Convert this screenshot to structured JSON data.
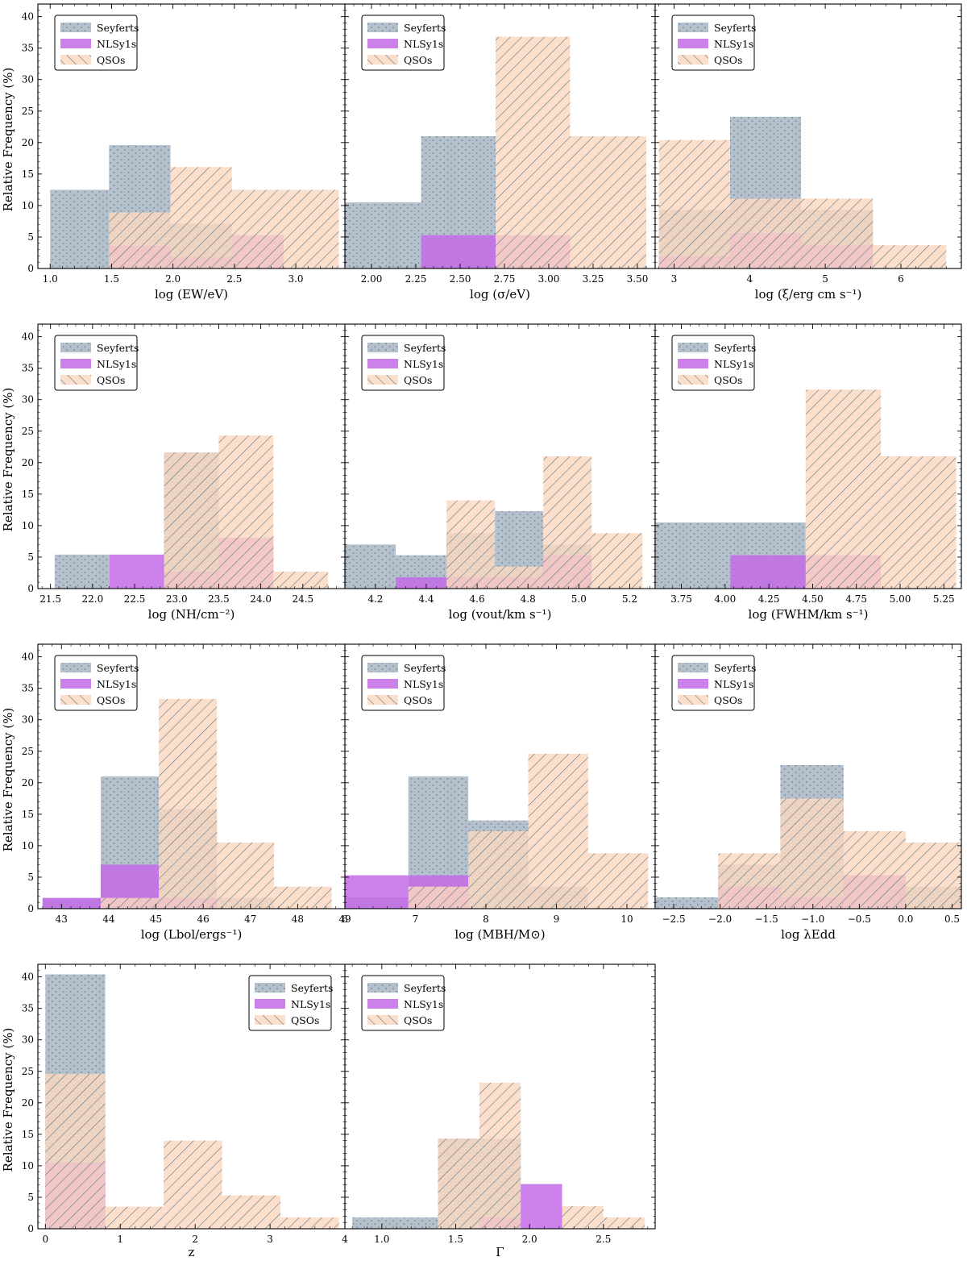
{
  "figure": {
    "ylabel": "Relative Frequency (%)"
  },
  "legend": {
    "labels": [
      "Seyferts",
      "NLSy1s",
      "QSOs"
    ]
  },
  "colors": {
    "seyfert_fill": "#b4c1cc",
    "seyfert_dot": "#6f8494",
    "nlsy_fill": "#c36be6",
    "qso_fill": "#fbd8be",
    "qso_hatch": "#4d6f88"
  },
  "chart_data": [
    {
      "type": "bar",
      "panel": "ew",
      "xlabel": "log (EW/eV)",
      "xlim": [
        0.9,
        3.4
      ],
      "xticks": [
        1.0,
        1.5,
        2.0,
        2.5,
        3.0
      ],
      "xtick_labels": [
        "1.0",
        "1.5",
        "2.0",
        "2.5",
        "3.0"
      ],
      "ylim": [
        0,
        42
      ],
      "yticks": [
        0,
        5,
        10,
        15,
        20,
        25,
        30,
        35,
        40
      ],
      "legend_loc": "upper-left",
      "series": [
        {
          "name": "Seyferts",
          "bins": [
            [
              1.0,
              1.48,
              12.5
            ],
            [
              1.48,
              1.98,
              19.6
            ],
            [
              1.98,
              2.48,
              7.1
            ]
          ]
        },
        {
          "name": "NLSy1s",
          "bins": [
            [
              1.48,
              1.98,
              3.6
            ],
            [
              1.98,
              2.48,
              1.8
            ],
            [
              2.48,
              2.9,
              5.3
            ]
          ]
        },
        {
          "name": "QSOs",
          "bins": [
            [
              1.48,
              1.98,
              8.9
            ],
            [
              1.98,
              2.48,
              16.1
            ],
            [
              2.48,
              3.35,
              12.5
            ]
          ]
        }
      ]
    },
    {
      "type": "bar",
      "panel": "sigma",
      "xlabel": "log (σ/eV)",
      "xlim": [
        1.85,
        3.6
      ],
      "xticks": [
        2.0,
        2.25,
        2.5,
        2.75,
        3.0,
        3.25,
        3.5
      ],
      "xtick_labels": [
        "2.00",
        "2.25",
        "2.50",
        "2.75",
        "3.00",
        "3.25",
        "3.50"
      ],
      "ylim": [
        0,
        42
      ],
      "yticks": [
        0,
        5,
        10,
        15,
        20,
        25,
        30,
        35,
        40
      ],
      "legend_loc": "upper-left",
      "series": [
        {
          "name": "Seyferts",
          "bins": [
            [
              1.85,
              2.28,
              10.5
            ],
            [
              2.28,
              2.7,
              21.0
            ]
          ]
        },
        {
          "name": "NLSy1s",
          "bins": [
            [
              2.28,
              2.7,
              5.3
            ],
            [
              2.7,
              3.12,
              5.3
            ]
          ]
        },
        {
          "name": "QSOs",
          "bins": [
            [
              2.7,
              3.12,
              36.8
            ],
            [
              3.12,
              3.55,
              21.0
            ]
          ]
        }
      ]
    },
    {
      "type": "bar",
      "panel": "xi",
      "xlabel": "log (ξ/erg cm s⁻¹)",
      "xlim": [
        2.75,
        6.8
      ],
      "xticks": [
        3,
        4,
        5,
        6
      ],
      "xtick_labels": [
        "3",
        "4",
        "5",
        "6"
      ],
      "ylim": [
        0,
        42
      ],
      "yticks": [
        0,
        5,
        10,
        15,
        20,
        25,
        30,
        35,
        40
      ],
      "legend_loc": "upper-left",
      "series": [
        {
          "name": "Seyferts",
          "bins": [
            [
              2.8,
              3.74,
              9.3
            ],
            [
              3.74,
              4.68,
              24.1
            ],
            [
              4.68,
              5.63,
              9.3
            ]
          ]
        },
        {
          "name": "NLSy1s",
          "bins": [
            [
              2.8,
              3.74,
              1.9
            ],
            [
              3.74,
              4.68,
              5.6
            ],
            [
              4.68,
              5.63,
              3.7
            ]
          ]
        },
        {
          "name": "QSOs",
          "bins": [
            [
              2.8,
              3.74,
              20.4
            ],
            [
              3.74,
              4.68,
              11.1
            ],
            [
              4.68,
              5.63,
              11.1
            ],
            [
              5.63,
              6.6,
              3.7
            ]
          ]
        }
      ]
    },
    {
      "type": "bar",
      "panel": "nh",
      "xlabel": "log (NH/cm⁻²)",
      "xlim": [
        21.35,
        25.0
      ],
      "xticks": [
        21.5,
        22.0,
        22.5,
        23.0,
        23.5,
        24.0,
        24.5
      ],
      "xtick_labels": [
        "21.5",
        "22.0",
        "22.5",
        "23.0",
        "23.5",
        "24.0",
        "24.5"
      ],
      "ylim": [
        0,
        42
      ],
      "yticks": [
        0,
        5,
        10,
        15,
        20,
        25,
        30,
        35,
        40
      ],
      "legend_loc": "upper-left",
      "series": [
        {
          "name": "Seyferts",
          "bins": [
            [
              21.55,
              22.2,
              5.4
            ],
            [
              22.85,
              23.5,
              21.6
            ]
          ]
        },
        {
          "name": "NLSy1s",
          "bins": [
            [
              22.2,
              22.85,
              5.4
            ],
            [
              22.85,
              23.5,
              2.7
            ],
            [
              23.5,
              24.15,
              8.1
            ]
          ]
        },
        {
          "name": "QSOs",
          "bins": [
            [
              22.85,
              23.5,
              21.6
            ],
            [
              23.5,
              24.15,
              24.3
            ],
            [
              24.15,
              24.8,
              2.7
            ]
          ]
        }
      ]
    },
    {
      "type": "bar",
      "panel": "vout",
      "xlabel": "log (vout/km s⁻¹)",
      "xlim": [
        4.08,
        5.3
      ],
      "xticks": [
        4.2,
        4.4,
        4.6,
        4.8,
        5.0,
        5.2
      ],
      "xtick_labels": [
        "4.2",
        "4.4",
        "4.6",
        "4.8",
        "5.0",
        "5.2"
      ],
      "ylim": [
        0,
        42
      ],
      "yticks": [
        0,
        5,
        10,
        15,
        20,
        25,
        30,
        35,
        40
      ],
      "legend_loc": "upper-left",
      "series": [
        {
          "name": "Seyferts",
          "bins": [
            [
              4.08,
              4.28,
              7.0
            ],
            [
              4.28,
              4.48,
              5.3
            ],
            [
              4.48,
              4.67,
              8.8
            ],
            [
              4.67,
              4.86,
              12.3
            ],
            [
              4.86,
              5.05,
              7.0
            ]
          ]
        },
        {
          "name": "NLSy1s",
          "bins": [
            [
              4.28,
              4.48,
              1.8
            ],
            [
              4.48,
              4.67,
              1.8
            ],
            [
              4.67,
              4.86,
              1.8
            ],
            [
              4.86,
              5.05,
              5.3
            ]
          ]
        },
        {
          "name": "QSOs",
          "bins": [
            [
              4.48,
              4.67,
              14.0
            ],
            [
              4.67,
              4.86,
              3.5
            ],
            [
              4.86,
              5.05,
              21.0
            ],
            [
              5.05,
              5.25,
              8.8
            ]
          ]
        }
      ]
    },
    {
      "type": "bar",
      "panel": "fwhm",
      "xlabel": "log (FWHM/km s⁻¹)",
      "xlim": [
        3.6,
        5.35
      ],
      "xticks": [
        3.75,
        4.0,
        4.25,
        4.5,
        4.75,
        5.0,
        5.25
      ],
      "xtick_labels": [
        "3.75",
        "4.00",
        "4.25",
        "4.50",
        "4.75",
        "5.00",
        "5.25"
      ],
      "ylim": [
        0,
        42
      ],
      "yticks": [
        0,
        5,
        10,
        15,
        20,
        25,
        30,
        35,
        40
      ],
      "legend_loc": "upper-left",
      "series": [
        {
          "name": "Seyferts",
          "bins": [
            [
              3.6,
              4.46,
              10.5
            ]
          ]
        },
        {
          "name": "NLSy1s",
          "bins": [
            [
              4.03,
              4.89,
              5.3
            ]
          ]
        },
        {
          "name": "QSOs",
          "bins": [
            [
              4.46,
              4.89,
              31.6
            ],
            [
              4.89,
              5.32,
              21.0
            ]
          ]
        }
      ]
    },
    {
      "type": "bar",
      "panel": "lbol",
      "xlabel": "log (Lbol/ergs⁻¹)",
      "xlim": [
        42.5,
        49.0
      ],
      "xticks": [
        43,
        44,
        45,
        46,
        47,
        48,
        49
      ],
      "xtick_labels": [
        "43",
        "44",
        "45",
        "46",
        "47",
        "48",
        "49"
      ],
      "ylim": [
        0,
        42
      ],
      "yticks": [
        0,
        5,
        10,
        15,
        20,
        25,
        30,
        35,
        40
      ],
      "legend_loc": "upper-left",
      "series": [
        {
          "name": "Seyferts",
          "bins": [
            [
              42.6,
              43.83,
              1.7
            ],
            [
              43.83,
              45.06,
              21.0
            ],
            [
              45.06,
              46.29,
              15.8
            ],
            [
              46.29,
              47.5,
              1.7
            ]
          ]
        },
        {
          "name": "NLSy1s",
          "bins": [
            [
              42.6,
              43.83,
              1.7
            ],
            [
              43.83,
              45.06,
              7.0
            ],
            [
              45.06,
              46.29,
              1.7
            ]
          ]
        },
        {
          "name": "QSOs",
          "bins": [
            [
              43.83,
              45.06,
              1.7
            ],
            [
              45.06,
              46.29,
              33.3
            ],
            [
              46.29,
              47.5,
              10.5
            ],
            [
              47.5,
              48.72,
              3.5
            ]
          ]
        }
      ]
    },
    {
      "type": "bar",
      "panel": "mbh",
      "xlabel": "log (MBH/M⊙)",
      "xlim": [
        6.0,
        10.4
      ],
      "xticks": [
        6,
        7,
        8,
        9,
        10
      ],
      "xtick_labels": [
        "6",
        "7",
        "8",
        "9",
        "10"
      ],
      "ylim": [
        0,
        42
      ],
      "yticks": [
        0,
        5,
        10,
        15,
        20,
        25,
        30,
        35,
        40
      ],
      "legend_loc": "upper-left",
      "series": [
        {
          "name": "Seyferts",
          "bins": [
            [
              6.0,
              6.9,
              1.8
            ],
            [
              6.9,
              7.75,
              21.0
            ],
            [
              7.75,
              8.6,
              14.0
            ],
            [
              8.6,
              9.45,
              3.5
            ]
          ]
        },
        {
          "name": "NLSy1s",
          "bins": [
            [
              6.0,
              6.9,
              5.3
            ],
            [
              6.9,
              7.75,
              5.3
            ]
          ]
        },
        {
          "name": "QSOs",
          "bins": [
            [
              6.9,
              7.75,
              3.5
            ],
            [
              7.75,
              8.6,
              12.3
            ],
            [
              8.6,
              9.45,
              24.6
            ],
            [
              9.45,
              10.3,
              8.8
            ]
          ]
        }
      ]
    },
    {
      "type": "bar",
      "panel": "edd",
      "xlabel": "log λEdd",
      "xlim": [
        -2.7,
        0.6
      ],
      "xticks": [
        -2.5,
        -2.0,
        -1.5,
        -1.0,
        -0.5,
        0.0,
        0.5
      ],
      "xtick_labels": [
        "−2.5",
        "−2.0",
        "−1.5",
        "−1.0",
        "−0.5",
        "0.0",
        "0.5"
      ],
      "ylim": [
        0,
        42
      ],
      "yticks": [
        0,
        5,
        10,
        15,
        20,
        25,
        30,
        35,
        40
      ],
      "legend_loc": "upper-left",
      "series": [
        {
          "name": "Seyferts",
          "bins": [
            [
              -2.7,
              -2.02,
              1.8
            ],
            [
              -2.02,
              -1.35,
              7.0
            ],
            [
              -1.35,
              -0.67,
              22.8
            ],
            [
              -0.67,
              0.0,
              5.3
            ],
            [
              0.0,
              0.6,
              3.5
            ]
          ]
        },
        {
          "name": "NLSy1s",
          "bins": [
            [
              -2.02,
              -1.35,
              3.5
            ],
            [
              -1.35,
              -0.67,
              1.8
            ],
            [
              -0.67,
              0.0,
              5.3
            ]
          ]
        },
        {
          "name": "QSOs",
          "bins": [
            [
              -2.02,
              -1.35,
              8.8
            ],
            [
              -1.35,
              -0.67,
              17.5
            ],
            [
              -0.67,
              0.0,
              12.3
            ],
            [
              0.0,
              0.6,
              10.5
            ]
          ]
        }
      ]
    },
    {
      "type": "bar",
      "panel": "z",
      "xlabel": "z",
      "xlim": [
        -0.1,
        4.0
      ],
      "xticks": [
        0,
        1,
        2,
        3,
        4
      ],
      "xtick_labels": [
        "0",
        "1",
        "2",
        "3",
        "4"
      ],
      "ylim": [
        0,
        42
      ],
      "yticks": [
        0,
        5,
        10,
        15,
        20,
        25,
        30,
        35,
        40
      ],
      "legend_loc": "upper-right",
      "series": [
        {
          "name": "Seyferts",
          "bins": [
            [
              0.0,
              0.8,
              40.4
            ]
          ]
        },
        {
          "name": "NLSy1s",
          "bins": [
            [
              0.0,
              0.8,
              10.5
            ]
          ]
        },
        {
          "name": "QSOs",
          "bins": [
            [
              0.0,
              0.8,
              24.6
            ],
            [
              0.8,
              1.58,
              3.5
            ],
            [
              1.58,
              2.36,
              14.0
            ],
            [
              2.36,
              3.14,
              5.3
            ],
            [
              3.14,
              3.92,
              1.8
            ]
          ]
        }
      ]
    },
    {
      "type": "bar",
      "panel": "gamma",
      "xlabel": "Γ",
      "xlim": [
        0.75,
        2.85
      ],
      "xticks": [
        1.0,
        1.5,
        2.0,
        2.5
      ],
      "xtick_labels": [
        "1.0",
        "1.5",
        "2.0",
        "2.5"
      ],
      "ylim": [
        0,
        42
      ],
      "yticks": [
        0,
        5,
        10,
        15,
        20,
        25,
        30,
        35,
        40
      ],
      "legend_loc": "upper-left",
      "series": [
        {
          "name": "Seyferts",
          "bins": [
            [
              0.8,
              1.38,
              1.8
            ],
            [
              1.38,
              1.66,
              14.3
            ],
            [
              1.66,
              1.94,
              14.3
            ]
          ]
        },
        {
          "name": "NLSy1s",
          "bins": [
            [
              1.66,
              1.94,
              1.8
            ],
            [
              1.94,
              2.22,
              7.1
            ]
          ]
        },
        {
          "name": "QSOs",
          "bins": [
            [
              1.38,
              1.66,
              14.3
            ],
            [
              1.66,
              1.94,
              23.2
            ],
            [
              2.22,
              2.5,
              3.6
            ],
            [
              2.5,
              2.78,
              1.8
            ]
          ]
        }
      ]
    }
  ]
}
